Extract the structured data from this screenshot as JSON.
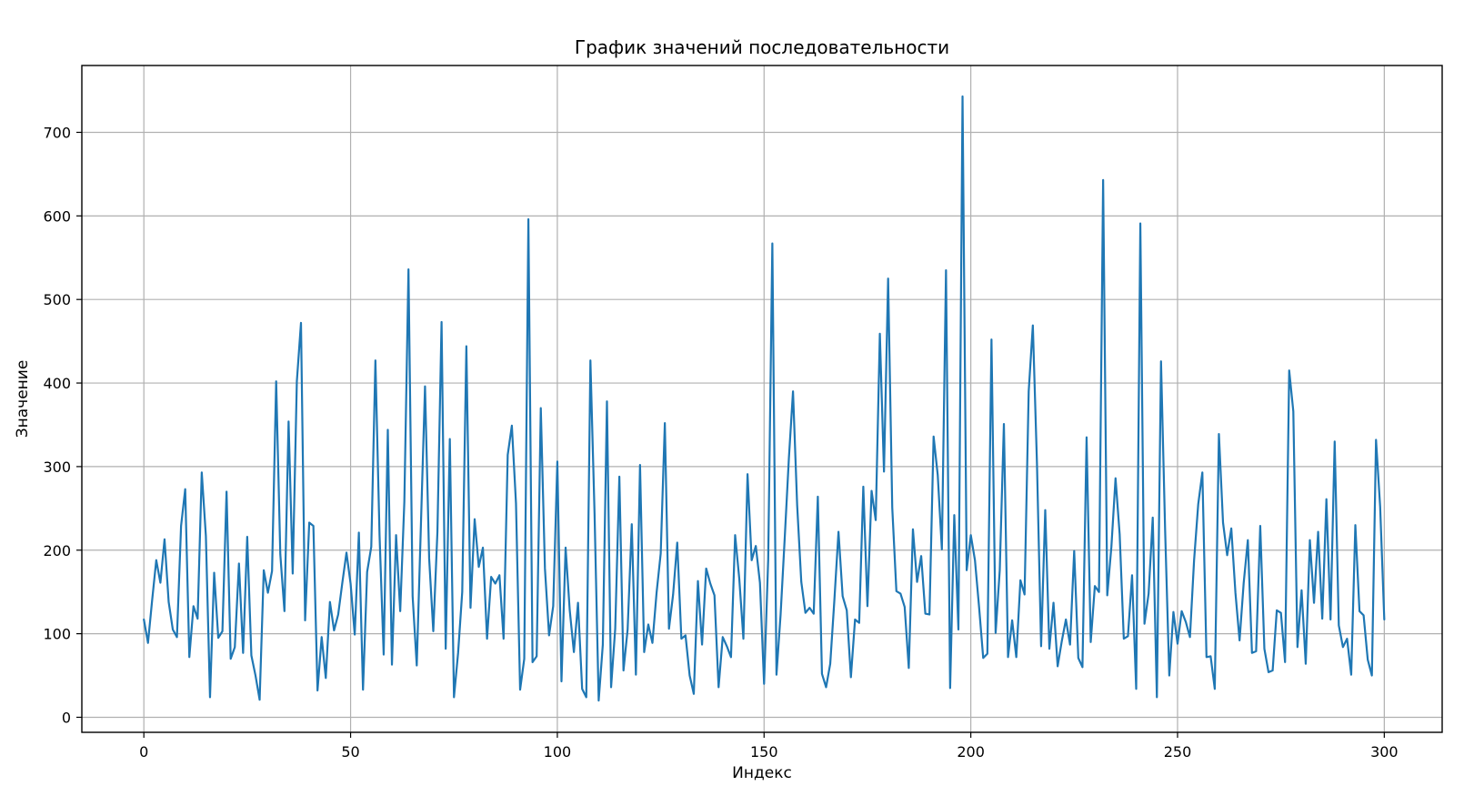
{
  "chart_data": {
    "type": "line",
    "title": "График значений последовательности",
    "xlabel": "Индекс",
    "ylabel": "Значение",
    "xlim": [
      -15,
      314
    ],
    "ylim": [
      -18,
      780
    ],
    "xticks": [
      0,
      50,
      100,
      150,
      200,
      250,
      300
    ],
    "yticks": [
      0,
      100,
      200,
      300,
      400,
      500,
      600,
      700
    ],
    "grid": true,
    "legend": "none",
    "series_color": "#1f77b4",
    "series": [
      {
        "values": [
          117,
          89,
          140,
          188,
          161,
          213,
          138,
          105,
          96,
          229,
          273,
          72,
          133,
          118,
          293,
          217,
          24,
          173,
          95,
          103,
          270,
          70,
          84,
          184,
          77,
          216,
          74,
          50,
          21,
          176,
          149,
          175,
          402,
          195,
          127,
          354,
          172,
          402,
          472,
          116,
          233,
          229,
          32,
          96,
          47,
          138,
          104,
          123,
          161,
          197,
          160,
          99,
          221,
          33,
          174,
          204,
          427,
          218,
          75,
          344,
          63,
          218,
          127,
          258,
          536,
          145,
          62,
          229,
          396,
          190,
          103,
          222,
          473,
          82,
          333,
          24,
          77,
          150,
          444,
          131,
          237,
          180,
          203,
          94,
          168,
          160,
          170,
          94,
          314,
          349,
          256,
          33,
          70,
          596,
          66,
          73,
          370,
          178,
          98,
          133,
          306,
          43,
          203,
          128,
          78,
          137,
          34,
          24,
          427,
          244,
          20,
          87,
          378,
          36,
          106,
          288,
          56,
          105,
          231,
          51,
          302,
          78,
          111,
          89,
          149,
          196,
          352,
          106,
          147,
          209,
          94,
          98,
          50,
          28,
          163,
          87,
          178,
          160,
          146,
          36,
          96,
          85,
          72,
          218,
          166,
          94,
          291,
          188,
          205,
          161,
          40,
          189,
          567,
          51,
          123,
          215,
          310,
          390,
          254,
          162,
          125,
          131,
          124,
          264,
          52,
          36,
          64,
          140,
          222,
          145,
          128,
          48,
          117,
          113,
          276,
          133,
          271,
          236,
          459,
          294,
          525,
          251,
          151,
          148,
          132,
          59,
          225,
          162,
          193,
          124,
          123,
          336,
          290,
          201,
          535,
          35,
          242,
          105,
          743,
          176,
          218,
          188,
          132,
          71,
          76,
          452,
          101,
          176,
          351,
          72,
          116,
          72,
          164,
          147,
          390,
          469,
          304,
          85,
          248,
          82,
          137,
          61,
          91,
          117,
          87,
          199,
          71,
          60,
          335,
          90,
          157,
          150,
          643,
          146,
          204,
          286,
          219,
          94,
          97,
          170,
          34,
          591,
          112,
          148,
          239,
          24,
          426,
          223,
          50,
          126,
          88,
          127,
          114,
          96,
          188,
          255,
          293,
          72,
          73,
          34,
          339,
          233,
          194,
          226,
          149,
          92,
          161,
          212,
          77,
          79,
          229,
          82,
          54,
          56,
          128,
          125,
          66,
          415,
          366,
          84,
          152,
          64,
          212,
          137,
          222,
          118,
          261,
          117,
          330,
          110,
          84,
          94,
          51,
          230,
          127,
          122,
          69,
          50,
          332,
          252,
          117
        ]
      }
    ]
  }
}
